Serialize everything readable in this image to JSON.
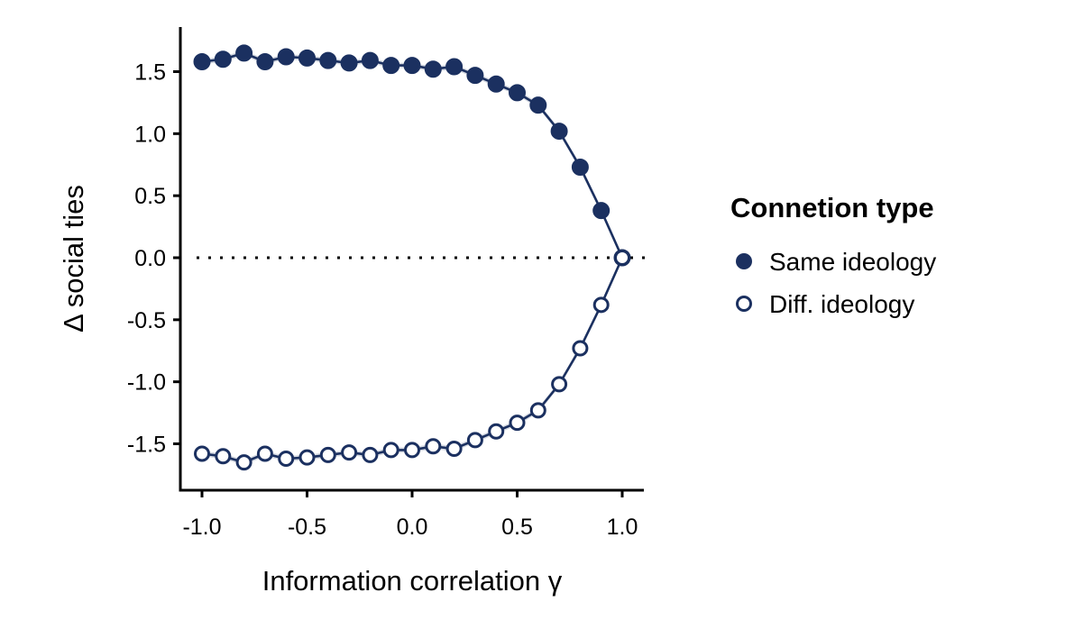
{
  "chart_data": {
    "type": "line",
    "xlabel": "Information correlation γ",
    "ylabel": "Δ social ties",
    "xlim": [
      -1.1,
      1.1
    ],
    "ylim": [
      -1.86,
      1.86
    ],
    "x_ticks": [
      -1.0,
      -0.5,
      0.0,
      0.5,
      1.0
    ],
    "x_tick_labels": [
      "-1.0",
      "-0.5",
      "0.0",
      "0.5",
      "1.0"
    ],
    "y_ticks": [
      1.5,
      1.0,
      0.5,
      0.0,
      -0.5,
      -1.0,
      -1.5
    ],
    "y_tick_labels": [
      "1.5",
      "1.0",
      "0.5",
      "0.0",
      "-0.5",
      "-1.0",
      "-1.5"
    ],
    "reference_line": {
      "y": 0,
      "style": "dotted"
    },
    "grid": false,
    "legend": {
      "title": "Connetion type",
      "position": "right"
    },
    "x": [
      -1.0,
      -0.9,
      -0.8,
      -0.7,
      -0.6,
      -0.5,
      -0.4,
      -0.3,
      -0.2,
      -0.1,
      0.0,
      0.1,
      0.2,
      0.3,
      0.4,
      0.5,
      0.6,
      0.7,
      0.8,
      0.9,
      1.0
    ],
    "series": [
      {
        "name": "Same ideology",
        "marker": "filled-circle",
        "color": "#1b3060",
        "values": [
          1.58,
          1.6,
          1.65,
          1.58,
          1.62,
          1.61,
          1.59,
          1.57,
          1.59,
          1.55,
          1.55,
          1.52,
          1.54,
          1.47,
          1.4,
          1.33,
          1.23,
          1.02,
          0.73,
          0.38,
          0.0
        ]
      },
      {
        "name": "Diff. ideology",
        "marker": "open-circle",
        "color": "#1b3060",
        "values": [
          -1.58,
          -1.6,
          -1.65,
          -1.58,
          -1.62,
          -1.61,
          -1.59,
          -1.57,
          -1.59,
          -1.55,
          -1.55,
          -1.52,
          -1.54,
          -1.47,
          -1.4,
          -1.33,
          -1.23,
          -1.02,
          -0.73,
          -0.38,
          0.0
        ]
      }
    ]
  }
}
